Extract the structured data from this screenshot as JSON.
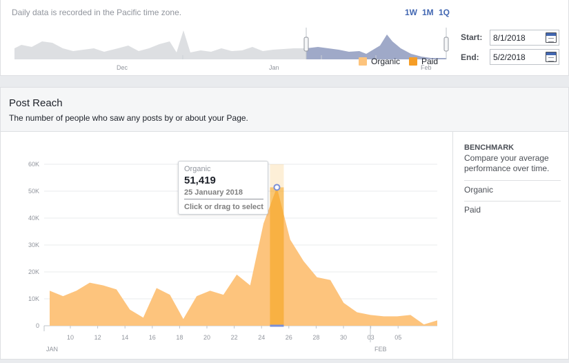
{
  "range": {
    "timezone_note": "Daily data is recorded in the Pacific time zone.",
    "quick_ranges": [
      "1W",
      "1M",
      "1Q"
    ],
    "mini_months": [
      "Dec",
      "Jan",
      "Feb"
    ],
    "start_label": "Start:",
    "start_value": "8/1/2018",
    "end_label": "End:",
    "end_value": "5/2/2018"
  },
  "post_reach": {
    "title": "Post Reach",
    "subtitle": "The number of people who saw any posts by or about your Page."
  },
  "legend": {
    "organic": "Organic",
    "paid": "Paid"
  },
  "benchmark": {
    "title": "BENCHMARK",
    "description": "Compare your average performance over time.",
    "items": [
      "Organic",
      "Paid"
    ]
  },
  "tooltip": {
    "series": "Organic",
    "value": "51,419",
    "date": "25 January 2018",
    "hint": "Click or drag to select"
  },
  "colors": {
    "organic": "#fdc47d",
    "paid": "#f59d26",
    "highlight": "#f5a623",
    "accent": "#4267b2"
  },
  "chart_data": {
    "type": "area",
    "title": "",
    "xlabel": "",
    "ylabel": "",
    "ylim": [
      0,
      60000
    ],
    "yticks": [
      0,
      10000,
      20000,
      30000,
      40000,
      50000,
      60000
    ],
    "ytick_labels": [
      "0",
      "10K",
      "20K",
      "30K",
      "40K",
      "50K",
      "60K"
    ],
    "xtick_labels": [
      "10",
      "12",
      "14",
      "16",
      "18",
      "20",
      "22",
      "24",
      "26",
      "28",
      "30",
      "03",
      "05"
    ],
    "month_labels": [
      "JAN",
      "FEB"
    ],
    "x": [
      "8 Jan",
      "9 Jan",
      "10 Jan",
      "11 Jan",
      "12 Jan",
      "13 Jan",
      "14 Jan",
      "15 Jan",
      "16 Jan",
      "17 Jan",
      "18 Jan",
      "19 Jan",
      "20 Jan",
      "21 Jan",
      "22 Jan",
      "23 Jan",
      "24 Jan",
      "25 Jan",
      "26 Jan",
      "27 Jan",
      "28 Jan",
      "29 Jan",
      "30 Jan",
      "31 Jan",
      "1 Feb",
      "2 Feb",
      "3 Feb",
      "4 Feb",
      "5 Feb",
      "6 Feb"
    ],
    "series": [
      {
        "name": "Organic",
        "values": [
          13000,
          11000,
          13000,
          16000,
          15000,
          13500,
          6000,
          3000,
          14000,
          11500,
          2500,
          11000,
          13000,
          11500,
          19000,
          15000,
          38000,
          51419,
          32000,
          24000,
          18000,
          17000,
          8500,
          5000,
          4000,
          3500,
          3500,
          4000,
          500,
          2000
        ]
      },
      {
        "name": "Paid",
        "values": [
          0,
          0,
          0,
          0,
          0,
          0,
          0,
          0,
          0,
          0,
          0,
          0,
          0,
          0,
          0,
          0,
          0,
          0,
          0,
          0,
          0,
          0,
          0,
          0,
          0,
          0,
          0,
          0,
          0,
          0
        ]
      }
    ],
    "highlight": {
      "x": "25 Jan",
      "series": "Organic",
      "value": 51419
    },
    "legend_position": "top-right",
    "grid": true
  }
}
